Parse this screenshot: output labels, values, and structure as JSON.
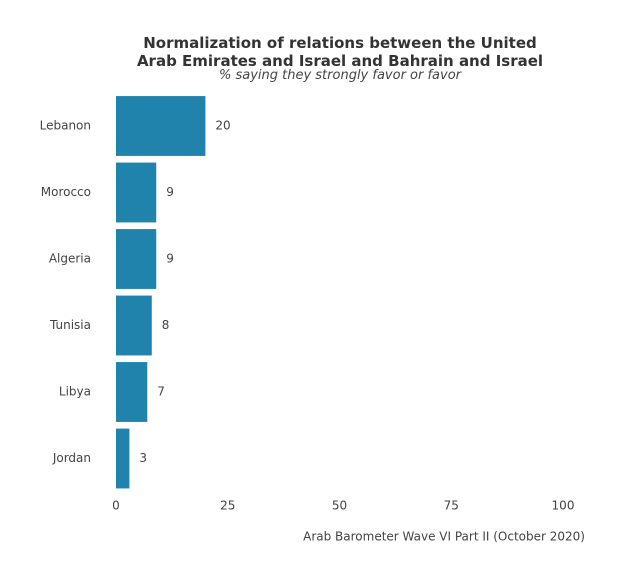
{
  "chart_data": {
    "type": "barh",
    "title": "Normalization of relations between the United Arab Emirates and Israel and Bahrain and Israel",
    "subtitle": "% saying they strongly favor or favor",
    "caption": "Arab Barometer Wave VI Part II (October 2020)",
    "categories": [
      "Lebanon",
      "Morocco",
      "Algeria",
      "Tunisia",
      "Libya",
      "Jordan"
    ],
    "values": [
      20,
      9,
      9,
      8,
      7,
      3
    ],
    "color": "#1f83ab",
    "xlim": [
      0,
      100
    ],
    "xticks": [
      0,
      25,
      50,
      75,
      100
    ],
    "grid": false
  }
}
